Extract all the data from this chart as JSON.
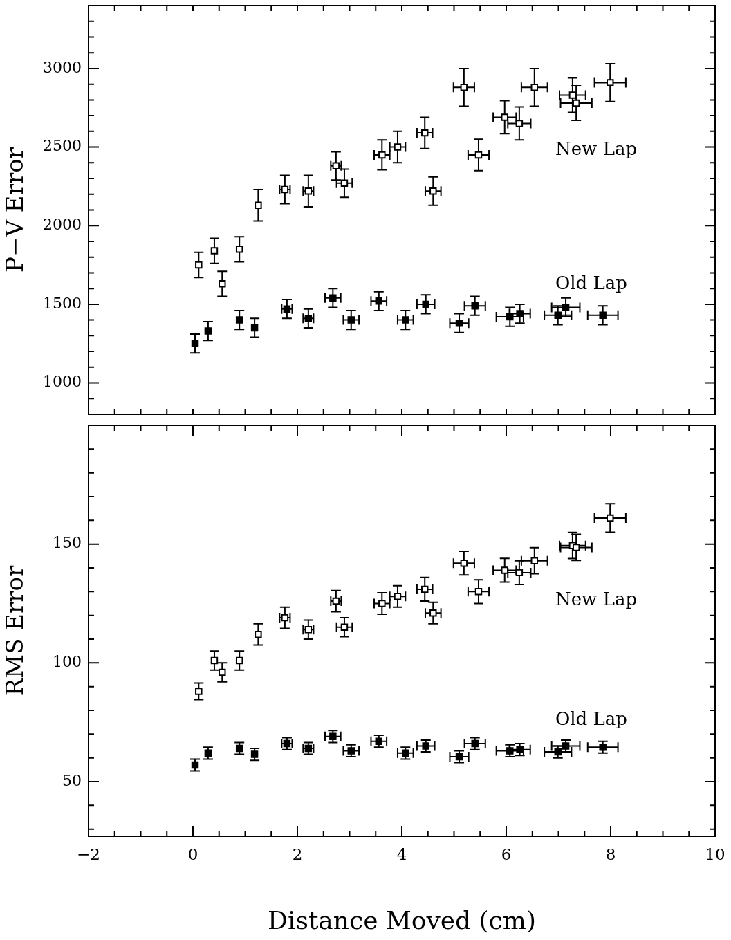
{
  "chart_data": [
    {
      "type": "scatter",
      "ylabel": "P−V Error",
      "tick_labels": "y",
      "marker": "square",
      "xlim": [
        -2,
        10
      ],
      "xticks": [
        {
          "value": -2,
          "label": null
        },
        {
          "value": -1.5,
          "label": null
        },
        {
          "value": -1,
          "label": null
        },
        {
          "value": -0.5,
          "label": null
        },
        {
          "value": 0,
          "label": null
        },
        {
          "value": 0.5,
          "label": null
        },
        {
          "value": 1,
          "label": null
        },
        {
          "value": 1.5,
          "label": null
        },
        {
          "value": 2,
          "label": null
        },
        {
          "value": 2.5,
          "label": null
        },
        {
          "value": 3,
          "label": null
        },
        {
          "value": 3.5,
          "label": null
        },
        {
          "value": 4,
          "label": null
        },
        {
          "value": 4.5,
          "label": null
        },
        {
          "value": 5,
          "label": null
        },
        {
          "value": 5.5,
          "label": null
        },
        {
          "value": 6,
          "label": null
        },
        {
          "value": 6.5,
          "label": null
        },
        {
          "value": 7,
          "label": null
        },
        {
          "value": 7.5,
          "label": null
        },
        {
          "value": 8,
          "label": null
        },
        {
          "value": 8.5,
          "label": null
        },
        {
          "value": 9,
          "label": null
        },
        {
          "value": 9.5,
          "label": null
        },
        {
          "value": 10,
          "label": null
        }
      ],
      "ylim": [
        800,
        3400
      ],
      "yticks": [
        {
          "value": 900,
          "label": null
        },
        1000,
        {
          "value": 1100,
          "label": null
        },
        {
          "value": 1200,
          "label": null
        },
        {
          "value": 1300,
          "label": null
        },
        {
          "value": 1400,
          "label": null
        },
        1500,
        {
          "value": 1600,
          "label": null
        },
        {
          "value": 1700,
          "label": null
        },
        {
          "value": 1800,
          "label": null
        },
        {
          "value": 1900,
          "label": null
        },
        2000,
        {
          "value": 2100,
          "label": null
        },
        {
          "value": 2200,
          "label": null
        },
        {
          "value": 2300,
          "label": null
        },
        {
          "value": 2400,
          "label": null
        },
        2500,
        {
          "value": 2600,
          "label": null
        },
        {
          "value": 2700,
          "label": null
        },
        {
          "value": 2800,
          "label": null
        },
        {
          "value": 2900,
          "label": null
        },
        3000,
        {
          "value": 3100,
          "label": null
        },
        {
          "value": 3200,
          "label": null
        },
        {
          "value": 3300,
          "label": null
        }
      ],
      "series": [
        {
          "name": "New Lap",
          "color": "#000000",
          "x": [
            0.11,
            0.41,
            0.56,
            0.89,
            1.25,
            1.76,
            2.21,
            2.74,
            2.9,
            3.62,
            3.92,
            4.44,
            4.6,
            5.19,
            5.47,
            5.97,
            6.25,
            6.54,
            7.27,
            7.34,
            7.99
          ],
          "values": [
            1750,
            1840,
            1630,
            1850,
            2130,
            2230,
            2220,
            2380,
            2270,
            2450,
            2500,
            2590,
            2220,
            2880,
            2450,
            2690,
            2650,
            2880,
            2830,
            2780,
            2910
          ],
          "errors": [
            80,
            80,
            80,
            80,
            100,
            90,
            100,
            90,
            90,
            95,
            100,
            100,
            90,
            120,
            100,
            105,
            105,
            120,
            110,
            110,
            120
          ],
          "xerrors": [
            null,
            null,
            null,
            null,
            null,
            0.1,
            0.1,
            0.1,
            0.15,
            0.15,
            0.15,
            0.15,
            0.15,
            0.2,
            0.2,
            0.22,
            0.22,
            0.25,
            0.25,
            0.3,
            0.3
          ]
        },
        {
          "name": "Old Lap",
          "color": "#000000",
          "x": [
            0.04,
            0.29,
            0.89,
            1.18,
            1.8,
            2.21,
            2.68,
            3.03,
            3.56,
            4.07,
            4.46,
            5.1,
            5.4,
            6.07,
            6.26,
            6.99,
            7.14,
            7.85
          ],
          "values": [
            1250,
            1330,
            1400,
            1350,
            1470,
            1410,
            1540,
            1400,
            1520,
            1400,
            1500,
            1380,
            1490,
            1420,
            1440,
            1430,
            1480,
            1430
          ],
          "errors": [
            60,
            60,
            60,
            60,
            60,
            60,
            60,
            60,
            60,
            60,
            60,
            60,
            60,
            60,
            60,
            60,
            60,
            60
          ],
          "xerrors": [
            null,
            null,
            null,
            null,
            0.1,
            0.1,
            0.15,
            0.15,
            0.15,
            0.15,
            0.17,
            0.18,
            0.2,
            0.26,
            0.2,
            0.26,
            0.27,
            0.29
          ]
        }
      ]
    },
    {
      "type": "scatter",
      "xlabel": "Distance Moved (cm)",
      "ylabel": "RMS Error",
      "marker": "square",
      "xlim": [
        -2,
        10
      ],
      "xticks": [
        {
          "value": -2,
          "label": "−2"
        },
        {
          "value": -1.5,
          "label": null
        },
        {
          "value": -1,
          "label": null
        },
        {
          "value": -0.5,
          "label": null
        },
        0,
        {
          "value": 0.5,
          "label": null
        },
        {
          "value": 1,
          "label": null
        },
        {
          "value": 1.5,
          "label": null
        },
        2,
        {
          "value": 2.5,
          "label": null
        },
        {
          "value": 3,
          "label": null
        },
        {
          "value": 3.5,
          "label": null
        },
        4,
        {
          "value": 4.5,
          "label": null
        },
        {
          "value": 5,
          "label": null
        },
        {
          "value": 5.5,
          "label": null
        },
        6,
        {
          "value": 6.5,
          "label": null
        },
        {
          "value": 7,
          "label": null
        },
        {
          "value": 7.5,
          "label": null
        },
        8,
        {
          "value": 8.5,
          "label": null
        },
        {
          "value": 9,
          "label": null
        },
        {
          "value": 9.5,
          "label": null
        },
        10
      ],
      "ylim": [
        27,
        200
      ],
      "yticks": [
        {
          "value": 30,
          "label": null
        },
        {
          "value": 40,
          "label": null
        },
        50,
        {
          "value": 60,
          "label": null
        },
        {
          "value": 70,
          "label": null
        },
        {
          "value": 80,
          "label": null
        },
        {
          "value": 90,
          "label": null
        },
        100,
        {
          "value": 110,
          "label": null
        },
        {
          "value": 120,
          "label": null
        },
        {
          "value": 130,
          "label": null
        },
        {
          "value": 140,
          "label": null
        },
        150,
        {
          "value": 160,
          "label": null
        },
        {
          "value": 170,
          "label": null
        },
        {
          "value": 180,
          "label": null
        },
        {
          "value": 190,
          "label": null
        }
      ],
      "series": [
        {
          "name": "New Lap",
          "color": "#000000",
          "x": [
            0.11,
            0.41,
            0.56,
            0.89,
            1.25,
            1.76,
            2.21,
            2.74,
            2.9,
            3.62,
            3.92,
            4.44,
            4.6,
            5.19,
            5.47,
            5.97,
            6.25,
            6.54,
            7.27,
            7.34,
            7.99
          ],
          "values": [
            88,
            101,
            96,
            101,
            112,
            119,
            114,
            126,
            115,
            125,
            128,
            131,
            121,
            142,
            130,
            139,
            138,
            143,
            149.4,
            148.6,
            161
          ],
          "errors": [
            3.5,
            4,
            4,
            4,
            4.5,
            4.5,
            4,
            4.5,
            4,
            4.5,
            4.5,
            5,
            4.5,
            5,
            5,
            5,
            5,
            5.5,
            5.5,
            5.5,
            6
          ],
          "xerrors": [
            null,
            null,
            null,
            null,
            null,
            0.1,
            0.1,
            0.1,
            0.15,
            0.15,
            0.15,
            0.15,
            0.15,
            0.2,
            0.2,
            0.22,
            0.22,
            0.25,
            0.25,
            0.3,
            0.3
          ]
        },
        {
          "name": "Old Lap",
          "color": "#000000",
          "x": [
            0.04,
            0.29,
            0.89,
            1.18,
            1.8,
            2.21,
            2.68,
            3.03,
            3.56,
            4.07,
            4.46,
            5.1,
            5.4,
            6.07,
            6.26,
            6.99,
            7.14,
            7.85
          ],
          "values": [
            57,
            62,
            64,
            61.5,
            66,
            64,
            69,
            63,
            67,
            62,
            65,
            60.5,
            66,
            63,
            63.5,
            62.5,
            65,
            64.5
          ],
          "errors": [
            2.5,
            2.5,
            2.5,
            2.5,
            2.5,
            2.5,
            2.5,
            2.5,
            2.5,
            2.5,
            2.5,
            2.5,
            2.5,
            2.5,
            2.5,
            2.5,
            2.5,
            2.5
          ],
          "xerrors": [
            null,
            null,
            null,
            null,
            0.1,
            0.1,
            0.15,
            0.15,
            0.15,
            0.15,
            0.17,
            0.18,
            0.2,
            0.26,
            0.2,
            0.26,
            0.27,
            0.29
          ]
        }
      ]
    }
  ]
}
